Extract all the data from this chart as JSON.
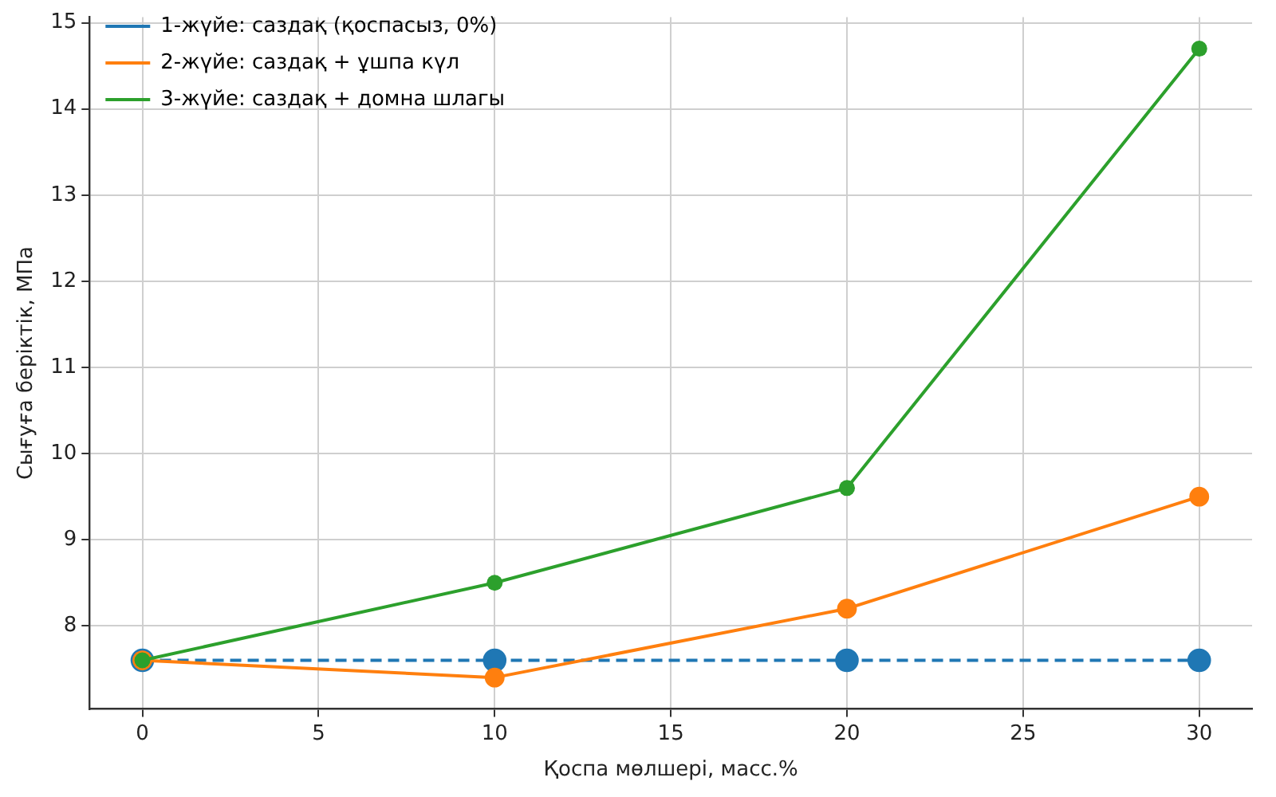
{
  "chart_data": {
    "type": "line",
    "xlabel": "Қоспа мөлшері, масс.%",
    "ylabel": "Сығуға беріктік, МПа",
    "x": [
      0,
      10,
      20,
      30
    ],
    "series": [
      {
        "name": "1-жүйе: саздақ (қоспасыз, 0%)",
        "color": "#1f77b4",
        "line_style": "dashed",
        "values": [
          7.6,
          7.6,
          7.6,
          7.6
        ]
      },
      {
        "name": "2-жүйе: саздақ + ұшпа күл",
        "color": "#ff7f0e",
        "line_style": "solid",
        "values": [
          7.6,
          7.4,
          8.2,
          9.5
        ]
      },
      {
        "name": "3-жүйе: саздақ + домна шлагы",
        "color": "#2ca02c",
        "line_style": "solid",
        "values": [
          7.6,
          8.5,
          9.6,
          14.7
        ]
      }
    ],
    "xlim": [
      -1.5,
      31.5
    ],
    "xticks": [
      0,
      5,
      10,
      15,
      20,
      25,
      30
    ],
    "ylim": [
      7.035,
      15.065
    ],
    "yticks": [
      8,
      9,
      10,
      11,
      12,
      13,
      14,
      15
    ],
    "grid": true,
    "legend": "top left",
    "marker": "circle"
  }
}
